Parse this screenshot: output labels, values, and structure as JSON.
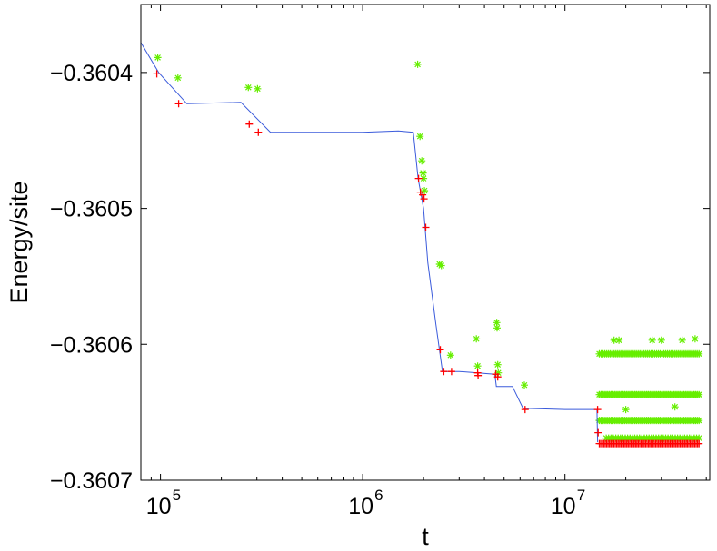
{
  "chart_data": {
    "type": "scatter",
    "title": "",
    "xlabel": "t",
    "ylabel": "Energy/site",
    "xscale": "log",
    "xlim": [
      80000,
      52000000
    ],
    "ylim": [
      -0.3607,
      -0.36035
    ],
    "grid": false,
    "legend": "none",
    "x_ticks": [
      {
        "value": 100000,
        "base": "10",
        "exp": "5"
      },
      {
        "value": 1000000,
        "base": "10",
        "exp": "6"
      },
      {
        "value": 10000000,
        "base": "10",
        "exp": "7"
      }
    ],
    "y_ticks": [
      {
        "value": -0.3604,
        "label": "−0.3604"
      },
      {
        "value": -0.3605,
        "label": "−0.3605"
      },
      {
        "value": -0.3606,
        "label": "−0.3606"
      },
      {
        "value": -0.3607,
        "label": "−0.3607"
      }
    ],
    "colors": {
      "line": "#3b5bdb",
      "plus": "#ff0000",
      "star": "#66ee00"
    },
    "series": [
      {
        "kind": "line",
        "points": [
          [
            80000,
            -0.360378
          ],
          [
            98000,
            -0.3604
          ],
          [
            135000,
            -0.360423
          ],
          [
            250000,
            -0.360422
          ],
          [
            350000,
            -0.360444
          ],
          [
            700000,
            -0.360444
          ],
          [
            1000000,
            -0.360444
          ],
          [
            1500000,
            -0.360443
          ],
          [
            1780000,
            -0.360444
          ],
          [
            1880000,
            -0.360478
          ],
          [
            2000000,
            -0.3605
          ],
          [
            2100000,
            -0.36054
          ],
          [
            2300000,
            -0.360585
          ],
          [
            2480000,
            -0.36062
          ],
          [
            3000000,
            -0.36062
          ],
          [
            4500000,
            -0.360622
          ],
          [
            4580000,
            -0.360631
          ],
          [
            5500000,
            -0.360631
          ],
          [
            6200000,
            -0.360647
          ],
          [
            10000000,
            -0.360648
          ],
          [
            14400000,
            -0.360648
          ],
          [
            14500000,
            -0.360672
          ]
        ]
      },
      {
        "kind": "plus",
        "points": [
          [
            96000,
            -0.360401
          ],
          [
            123000,
            -0.360423
          ],
          [
            275000,
            -0.360438
          ],
          [
            305000,
            -0.360444
          ],
          [
            1890000,
            -0.360478
          ],
          [
            1930000,
            -0.360488
          ],
          [
            1980000,
            -0.36049
          ],
          [
            2010000,
            -0.360493
          ],
          [
            2050000,
            -0.360514
          ],
          [
            2420000,
            -0.360604
          ],
          [
            2520000,
            -0.36062
          ],
          [
            2750000,
            -0.36062
          ],
          [
            3700000,
            -0.360621
          ],
          [
            3720000,
            -0.360623
          ],
          [
            4550000,
            -0.360622
          ],
          [
            4650000,
            -0.360624
          ],
          [
            6350000,
            -0.360648
          ],
          [
            14500000,
            -0.360648
          ],
          [
            14600000,
            -0.360665
          ]
        ],
        "band": {
          "x_range": [
            14800000,
            46000000
          ],
          "y": -0.360673,
          "count": 70
        }
      },
      {
        "kind": "star",
        "points": [
          [
            97000,
            -0.360389
          ],
          [
            122000,
            -0.360404
          ],
          [
            272000,
            -0.360411
          ],
          [
            302000,
            -0.360412
          ],
          [
            1870000,
            -0.360394
          ],
          [
            1920000,
            -0.360447
          ],
          [
            1960000,
            -0.360465
          ],
          [
            1990000,
            -0.360474
          ],
          [
            2000000,
            -0.360478
          ],
          [
            2020000,
            -0.360487
          ],
          [
            2400000,
            -0.360541
          ],
          [
            2450000,
            -0.360542
          ],
          [
            2720000,
            -0.360608
          ],
          [
            3650000,
            -0.360596
          ],
          [
            3700000,
            -0.360616
          ],
          [
            4600000,
            -0.360584
          ],
          [
            4620000,
            -0.360588
          ],
          [
            4650000,
            -0.360615
          ],
          [
            4680000,
            -0.360621
          ],
          [
            6300000,
            -0.36063
          ]
        ],
        "bands": [
          {
            "x_range": [
              14800000,
              46000000
            ],
            "y": -0.360607,
            "count": 55
          },
          {
            "x_range": [
              14800000,
              46000000
            ],
            "y": -0.360637,
            "count": 60
          },
          {
            "x_range": [
              14800000,
              46000000
            ],
            "y": -0.360656,
            "count": 60
          },
          {
            "x_range": [
              16000000,
              46000000
            ],
            "y": -0.360669,
            "count": 40
          }
        ],
        "extra_points": [
          [
            17500000,
            -0.360597
          ],
          [
            18500000,
            -0.360597
          ],
          [
            27000000,
            -0.360597
          ],
          [
            30000000,
            -0.360597
          ],
          [
            38000000,
            -0.360597
          ],
          [
            44000000,
            -0.360596
          ],
          [
            20000000,
            -0.360648
          ],
          [
            35000000,
            -0.360646
          ]
        ]
      }
    ]
  }
}
